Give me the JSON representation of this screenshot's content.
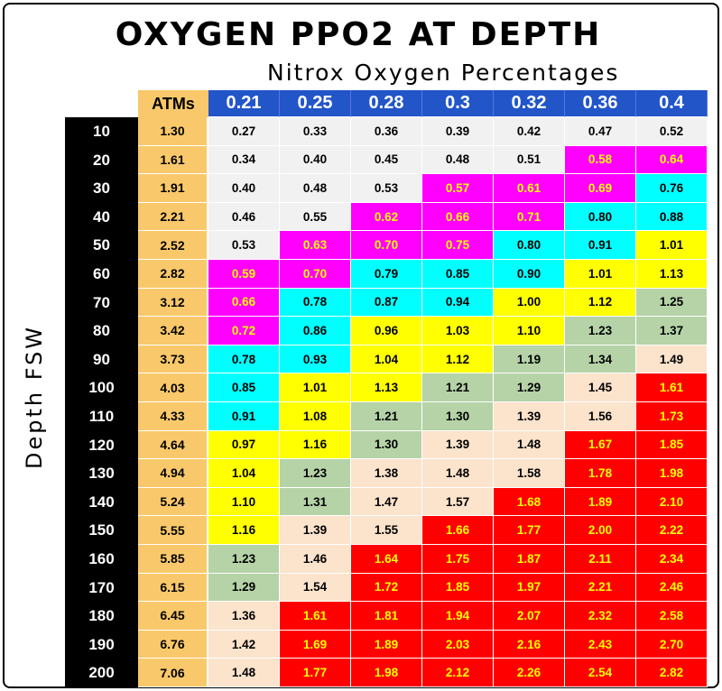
{
  "title": "OXYGEN PPO2 AT DEPTH",
  "subtitle": "Nitrox Oxygen Percentages",
  "ylabel": "Depth FSW",
  "atm_header": "ATMs",
  "colors": {
    "white": "#f1f1f1",
    "magenta": "#ff00ff",
    "cyan": "#00ffff",
    "yellow": "#ffff00",
    "green": "#b5d3a7",
    "peach": "#fbe3cc",
    "red": "#ff0000",
    "header_blue": "#2255c8",
    "atm_orange": "#f8c86a",
    "depth_black": "#000000"
  },
  "chart_data": {
    "type": "table",
    "title": "OXYGEN PPO2 AT DEPTH",
    "column_header": "Nitrox Oxygen Percentages",
    "row_header": "Depth FSW",
    "columns": [
      "0.21",
      "0.25",
      "0.28",
      "0.3",
      "0.32",
      "0.36",
      "0.4"
    ],
    "rows": [
      {
        "depth": "10",
        "atm": "1.30",
        "values": [
          "0.27",
          "0.33",
          "0.36",
          "0.39",
          "0.42",
          "0.47",
          "0.52"
        ],
        "colors": [
          "white",
          "white",
          "white",
          "white",
          "white",
          "white",
          "white"
        ]
      },
      {
        "depth": "20",
        "atm": "1.61",
        "values": [
          "0.34",
          "0.40",
          "0.45",
          "0.48",
          "0.51",
          "0.58",
          "0.64"
        ],
        "colors": [
          "white",
          "white",
          "white",
          "white",
          "white",
          "magenta",
          "magenta"
        ]
      },
      {
        "depth": "30",
        "atm": "1.91",
        "values": [
          "0.40",
          "0.48",
          "0.53",
          "0.57",
          "0.61",
          "0.69",
          "0.76"
        ],
        "colors": [
          "white",
          "white",
          "white",
          "magenta",
          "magenta",
          "magenta",
          "cyan"
        ]
      },
      {
        "depth": "40",
        "atm": "2.21",
        "values": [
          "0.46",
          "0.55",
          "0.62",
          "0.66",
          "0.71",
          "0.80",
          "0.88"
        ],
        "colors": [
          "white",
          "white",
          "magenta",
          "magenta",
          "magenta",
          "cyan",
          "cyan"
        ]
      },
      {
        "depth": "50",
        "atm": "2.52",
        "values": [
          "0.53",
          "0.63",
          "0.70",
          "0.75",
          "0.80",
          "0.91",
          "1.01"
        ],
        "colors": [
          "white",
          "magenta",
          "magenta",
          "magenta",
          "cyan",
          "cyan",
          "yellow"
        ]
      },
      {
        "depth": "60",
        "atm": "2.82",
        "values": [
          "0.59",
          "0.70",
          "0.79",
          "0.85",
          "0.90",
          "1.01",
          "1.13"
        ],
        "colors": [
          "magenta",
          "magenta",
          "cyan",
          "cyan",
          "cyan",
          "yellow",
          "yellow"
        ]
      },
      {
        "depth": "70",
        "atm": "3.12",
        "values": [
          "0.66",
          "0.78",
          "0.87",
          "0.94",
          "1.00",
          "1.12",
          "1.25"
        ],
        "colors": [
          "magenta",
          "cyan",
          "cyan",
          "cyan",
          "yellow",
          "yellow",
          "green"
        ]
      },
      {
        "depth": "80",
        "atm": "3.42",
        "values": [
          "0.72",
          "0.86",
          "0.96",
          "1.03",
          "1.10",
          "1.23",
          "1.37"
        ],
        "colors": [
          "magenta",
          "cyan",
          "yellow",
          "yellow",
          "yellow",
          "green",
          "green"
        ]
      },
      {
        "depth": "90",
        "atm": "3.73",
        "values": [
          "0.78",
          "0.93",
          "1.04",
          "1.12",
          "1.19",
          "1.34",
          "1.49"
        ],
        "colors": [
          "cyan",
          "cyan",
          "yellow",
          "yellow",
          "green",
          "green",
          "peach"
        ]
      },
      {
        "depth": "100",
        "atm": "4.03",
        "values": [
          "0.85",
          "1.01",
          "1.13",
          "1.21",
          "1.29",
          "1.45",
          "1.61"
        ],
        "colors": [
          "cyan",
          "yellow",
          "yellow",
          "green",
          "green",
          "peach",
          "red"
        ]
      },
      {
        "depth": "110",
        "atm": "4.33",
        "values": [
          "0.91",
          "1.08",
          "1.21",
          "1.30",
          "1.39",
          "1.56",
          "1.73"
        ],
        "colors": [
          "cyan",
          "yellow",
          "green",
          "green",
          "peach",
          "peach",
          "red"
        ]
      },
      {
        "depth": "120",
        "atm": "4.64",
        "values": [
          "0.97",
          "1.16",
          "1.30",
          "1.39",
          "1.48",
          "1.67",
          "1.85"
        ],
        "colors": [
          "yellow",
          "yellow",
          "green",
          "peach",
          "peach",
          "red",
          "red"
        ]
      },
      {
        "depth": "130",
        "atm": "4.94",
        "values": [
          "1.04",
          "1.23",
          "1.38",
          "1.48",
          "1.58",
          "1.78",
          "1.98"
        ],
        "colors": [
          "yellow",
          "green",
          "peach",
          "peach",
          "peach",
          "red",
          "red"
        ]
      },
      {
        "depth": "140",
        "atm": "5.24",
        "values": [
          "1.10",
          "1.31",
          "1.47",
          "1.57",
          "1.68",
          "1.89",
          "2.10"
        ],
        "colors": [
          "yellow",
          "green",
          "peach",
          "peach",
          "red",
          "red",
          "red"
        ]
      },
      {
        "depth": "150",
        "atm": "5.55",
        "values": [
          "1.16",
          "1.39",
          "1.55",
          "1.66",
          "1.77",
          "2.00",
          "2.22"
        ],
        "colors": [
          "yellow",
          "peach",
          "peach",
          "red",
          "red",
          "red",
          "red"
        ]
      },
      {
        "depth": "160",
        "atm": "5.85",
        "values": [
          "1.23",
          "1.46",
          "1.64",
          "1.75",
          "1.87",
          "2.11",
          "2.34"
        ],
        "colors": [
          "green",
          "peach",
          "red",
          "red",
          "red",
          "red",
          "red"
        ]
      },
      {
        "depth": "170",
        "atm": "6.15",
        "values": [
          "1.29",
          "1.54",
          "1.72",
          "1.85",
          "1.97",
          "2.21",
          "2.46"
        ],
        "colors": [
          "green",
          "peach",
          "red",
          "red",
          "red",
          "red",
          "red"
        ]
      },
      {
        "depth": "180",
        "atm": "6.45",
        "values": [
          "1.36",
          "1.61",
          "1.81",
          "1.94",
          "2.07",
          "2.32",
          "2.58"
        ],
        "colors": [
          "peach",
          "red",
          "red",
          "red",
          "red",
          "red",
          "red"
        ]
      },
      {
        "depth": "190",
        "atm": "6.76",
        "values": [
          "1.42",
          "1.69",
          "1.89",
          "2.03",
          "2.16",
          "2.43",
          "2.70"
        ],
        "colors": [
          "peach",
          "red",
          "red",
          "red",
          "red",
          "red",
          "red"
        ]
      },
      {
        "depth": "200",
        "atm": "7.06",
        "values": [
          "1.48",
          "1.77",
          "1.98",
          "2.12",
          "2.26",
          "2.54",
          "2.82"
        ],
        "colors": [
          "peach",
          "red",
          "red",
          "red",
          "red",
          "red",
          "red"
        ]
      }
    ]
  }
}
